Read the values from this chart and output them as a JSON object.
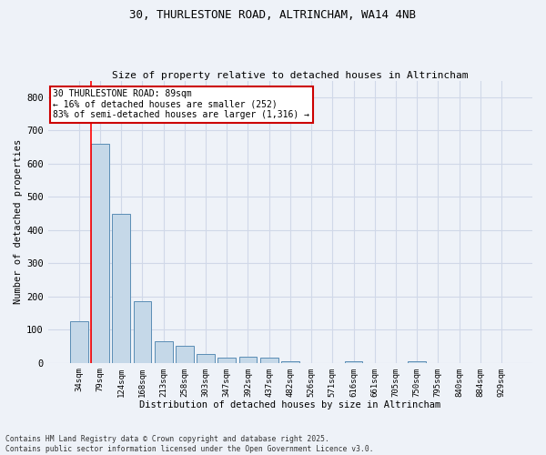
{
  "title_line1": "30, THURLESTONE ROAD, ALTRINCHAM, WA14 4NB",
  "title_line2": "Size of property relative to detached houses in Altrincham",
  "xlabel": "Distribution of detached houses by size in Altrincham",
  "ylabel": "Number of detached properties",
  "categories": [
    "34sqm",
    "79sqm",
    "124sqm",
    "168sqm",
    "213sqm",
    "258sqm",
    "303sqm",
    "347sqm",
    "392sqm",
    "437sqm",
    "482sqm",
    "526sqm",
    "571sqm",
    "616sqm",
    "661sqm",
    "705sqm",
    "750sqm",
    "795sqm",
    "840sqm",
    "884sqm",
    "929sqm"
  ],
  "values": [
    125,
    660,
    450,
    185,
    65,
    50,
    28,
    15,
    18,
    15,
    6,
    0,
    0,
    5,
    0,
    0,
    6,
    0,
    0,
    0,
    0
  ],
  "bar_color": "#c5d8e8",
  "bar_edge_color": "#5a8db5",
  "grid_color": "#d0d8e8",
  "background_color": "#eef2f8",
  "annotation_text": "30 THURLESTONE ROAD: 89sqm\n← 16% of detached houses are smaller (252)\n83% of semi-detached houses are larger (1,316) →",
  "annotation_box_color": "#ffffff",
  "annotation_box_edge_color": "#cc0000",
  "footnote": "Contains HM Land Registry data © Crown copyright and database right 2025.\nContains public sector information licensed under the Open Government Licence v3.0.",
  "ylim": [
    0,
    850
  ],
  "yticks": [
    0,
    100,
    200,
    300,
    400,
    500,
    600,
    700,
    800
  ]
}
